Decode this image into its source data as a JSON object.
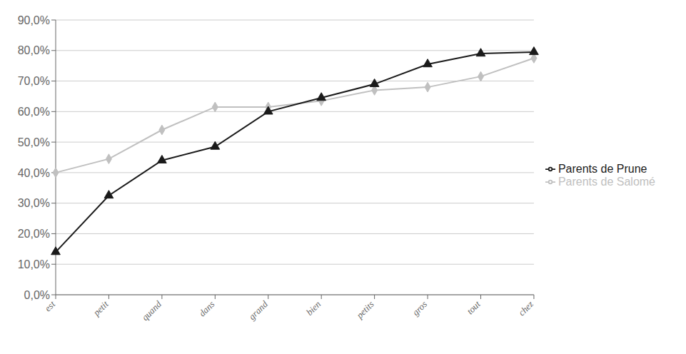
{
  "chart_data": {
    "type": "line",
    "categories": [
      "est",
      "petit",
      "quand",
      "dans",
      "grand",
      "bien",
      "petits",
      "gros",
      "tout",
      "chez"
    ],
    "series": [
      {
        "name": "Parents de Salomé",
        "color": "#c0c0c0",
        "marker": "diamond",
        "values": [
          40.0,
          44.5,
          54.0,
          61.5,
          61.5,
          63.5,
          67.0,
          68.0,
          71.5,
          77.5
        ]
      },
      {
        "name": "Parents de Prune",
        "color": "#1a1a1a",
        "marker": "triangle",
        "values": [
          14.0,
          32.5,
          44.0,
          48.5,
          60.0,
          64.5,
          69.0,
          75.5,
          79.0,
          79.5
        ]
      }
    ],
    "ylim": [
      0,
      90
    ],
    "yticks": [
      {
        "value": 0,
        "label": "0,0%"
      },
      {
        "value": 10,
        "label": "10,0%"
      },
      {
        "value": 20,
        "label": "20,0%"
      },
      {
        "value": 30,
        "label": "30,0%"
      },
      {
        "value": 40,
        "label": "40,0%"
      },
      {
        "value": 50,
        "label": "50,0%"
      },
      {
        "value": 60,
        "label": "60,0%"
      },
      {
        "value": 70,
        "label": "70,0%"
      },
      {
        "value": 80,
        "label": "80,0%"
      },
      {
        "value": 90,
        "label": "90,0%"
      }
    ],
    "grid": true,
    "legend": "right"
  }
}
